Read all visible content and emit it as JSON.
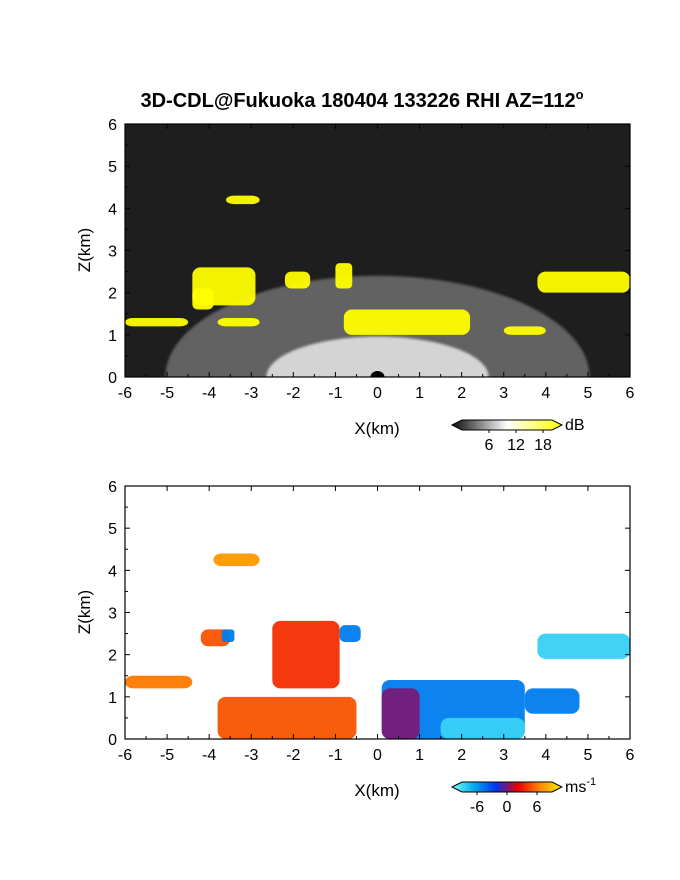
{
  "title": "3D-CDL@Fukuoka 180404 133226 RHI AZ=112",
  "title_degree": "o",
  "chart_data": [
    {
      "type": "heatmap",
      "name": "",
      "quantity": "intensity",
      "xlabel": "X(km)",
      "ylabel": "Z(km)",
      "xlim": [
        -6,
        6
      ],
      "ylim": [
        0,
        6
      ],
      "xticks": [
        "-6",
        "-5",
        "-4",
        "-3",
        "-2",
        "-1",
        "0",
        "1",
        "2",
        "3",
        "4",
        "5",
        "6"
      ],
      "yticks": [
        "0",
        "1",
        "2",
        "3",
        "4",
        "5",
        "6"
      ],
      "background": "#1e1e1e",
      "colorbar": {
        "unit": "dB",
        "ticks": [
          "6",
          "12",
          "18"
        ],
        "tick_values": [
          6,
          12,
          18
        ],
        "range": [
          0,
          20
        ],
        "colors": [
          "#0a0a0a",
          "#ffffff",
          "#ffff00"
        ]
      },
      "regions": [
        {
          "kind": "echo",
          "x": [
            -4.4,
            -2.9
          ],
          "z": [
            1.7,
            2.6
          ],
          "value": 20
        },
        {
          "kind": "echo",
          "x": [
            -4.4,
            -3.9
          ],
          "z": [
            1.6,
            2.1
          ],
          "value": 20
        },
        {
          "kind": "echo",
          "x": [
            -3.6,
            -2.8
          ],
          "z": [
            4.1,
            4.3
          ],
          "value": 20
        },
        {
          "kind": "echo",
          "x": [
            -2.2,
            -1.6
          ],
          "z": [
            2.1,
            2.5
          ],
          "value": 20
        },
        {
          "kind": "echo",
          "x": [
            -1.0,
            -0.6
          ],
          "z": [
            2.1,
            2.7
          ],
          "value": 20
        },
        {
          "kind": "echo",
          "x": [
            -0.8,
            2.2
          ],
          "z": [
            1.0,
            1.6
          ],
          "value": 20
        },
        {
          "kind": "echo",
          "x": [
            -6.0,
            -4.5
          ],
          "z": [
            1.2,
            1.4
          ],
          "value": 20
        },
        {
          "kind": "echo",
          "x": [
            -3.8,
            -2.8
          ],
          "z": [
            1.2,
            1.4
          ],
          "value": 20
        },
        {
          "kind": "echo",
          "x": [
            3.0,
            4.0
          ],
          "z": [
            1.0,
            1.2
          ],
          "value": 20
        },
        {
          "kind": "echo",
          "x": [
            3.8,
            6.0
          ],
          "z": [
            2.0,
            2.5
          ],
          "value": 20
        }
      ]
    },
    {
      "type": "heatmap",
      "name": "",
      "quantity": "radial velocity",
      "xlabel": "X(km)",
      "ylabel": "Z(km)",
      "xlim": [
        -6,
        6
      ],
      "ylim": [
        0,
        6
      ],
      "xticks": [
        "-6",
        "-5",
        "-4",
        "-3",
        "-2",
        "-1",
        "0",
        "1",
        "2",
        "3",
        "4",
        "5",
        "6"
      ],
      "yticks": [
        "0",
        "1",
        "2",
        "3",
        "4",
        "5",
        "6"
      ],
      "background": "#ffffff",
      "colorbar": {
        "unit": "ms",
        "unit_exponent": "-1",
        "ticks": [
          "-6",
          "0",
          "6"
        ],
        "tick_values": [
          -6,
          0,
          6
        ],
        "range": [
          -9,
          9
        ],
        "colors": [
          "#7fffff",
          "#00aaee",
          "#0033ee",
          "#ee0000",
          "#ff8800",
          "#ffee00"
        ]
      },
      "regions": [
        {
          "kind": "flow",
          "x": [
            -3.8,
            -0.5
          ],
          "z": [
            0.0,
            1.0
          ],
          "value": 4
        },
        {
          "kind": "flow",
          "x": [
            -2.5,
            -0.9
          ],
          "z": [
            1.2,
            2.8
          ],
          "value": 3
        },
        {
          "kind": "flow",
          "x": [
            -4.2,
            -3.5
          ],
          "z": [
            2.2,
            2.6
          ],
          "value": 4
        },
        {
          "kind": "flow",
          "x": [
            -6.0,
            -4.4
          ],
          "z": [
            1.2,
            1.5
          ],
          "value": 5
        },
        {
          "kind": "flow",
          "x": [
            -3.7,
            -3.4
          ],
          "z": [
            2.3,
            2.6
          ],
          "value": -4
        },
        {
          "kind": "flow",
          "x": [
            -0.9,
            -0.4
          ],
          "z": [
            2.3,
            2.7
          ],
          "value": -4
        },
        {
          "kind": "flow",
          "x": [
            -3.9,
            -2.8
          ],
          "z": [
            4.1,
            4.4
          ],
          "value": 6
        },
        {
          "kind": "flow",
          "x": [
            0.1,
            3.5
          ],
          "z": [
            0.0,
            1.4
          ],
          "value": -4
        },
        {
          "kind": "flow",
          "x": [
            3.5,
            4.8
          ],
          "z": [
            0.6,
            1.2
          ],
          "value": -4
        },
        {
          "kind": "flow",
          "x": [
            1.5,
            3.5
          ],
          "z": [
            0.0,
            0.5
          ],
          "value": -7
        },
        {
          "kind": "flow",
          "x": [
            3.8,
            6.0
          ],
          "z": [
            1.9,
            2.5
          ],
          "value": -7
        },
        {
          "kind": "flow",
          "x": [
            0.1,
            1.0
          ],
          "z": [
            0.0,
            1.2
          ],
          "value": 0
        }
      ]
    }
  ]
}
